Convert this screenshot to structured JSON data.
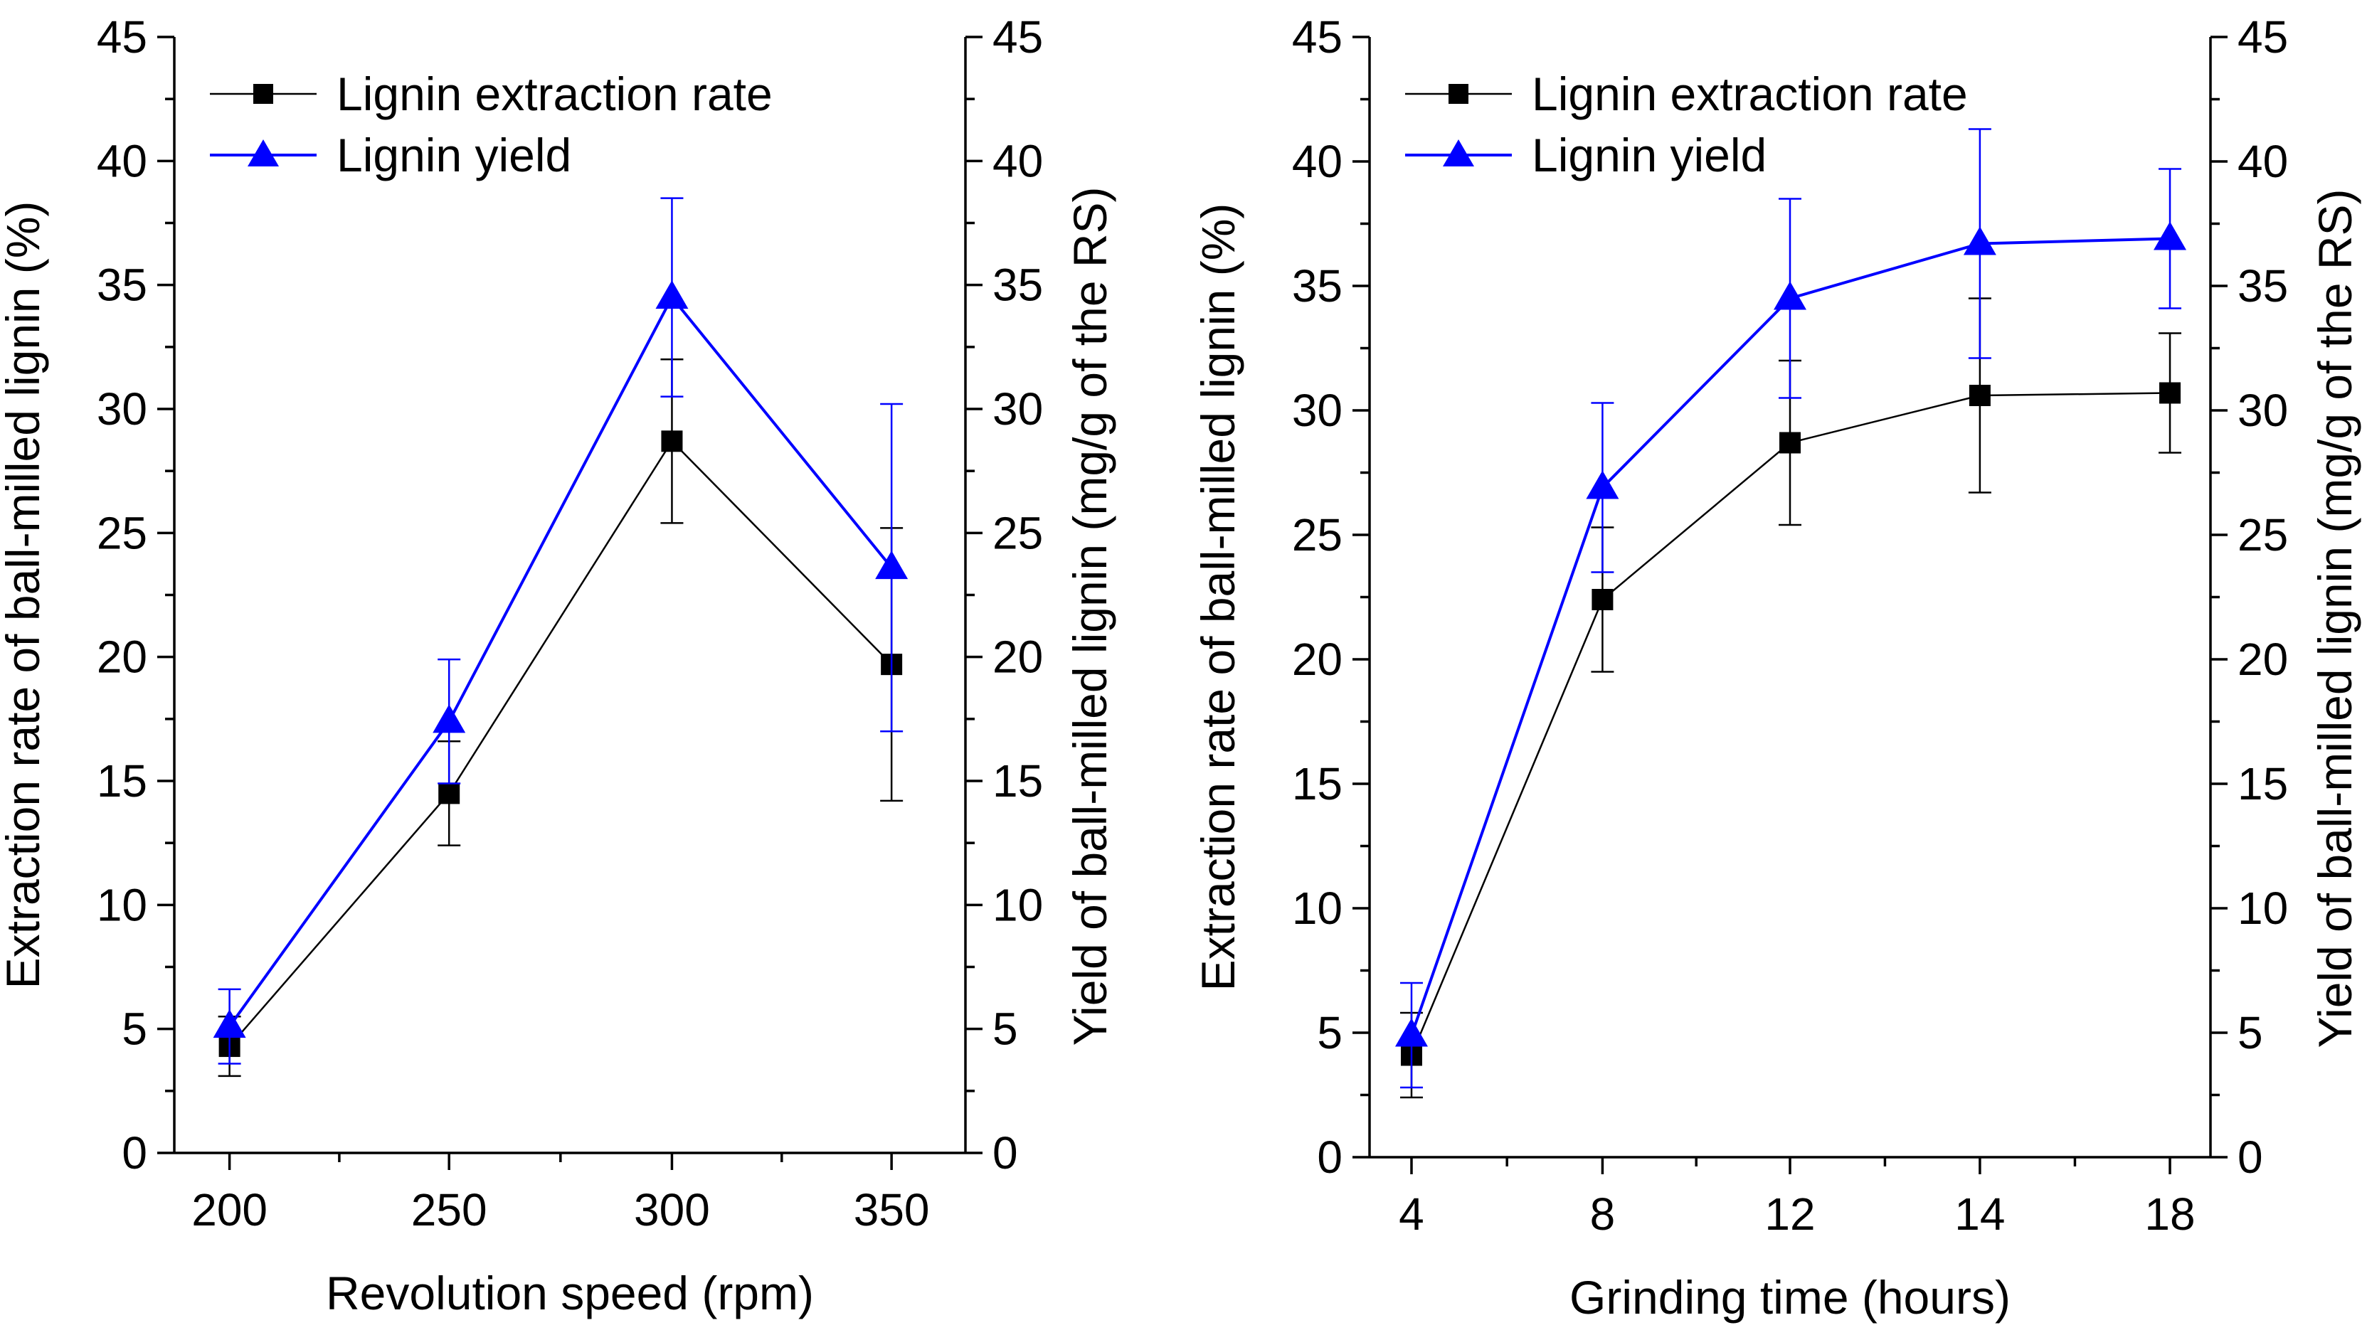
{
  "colors": {
    "series1": "#000000",
    "series2": "#0000ff",
    "axis": "#000000"
  },
  "chart_data": [
    {
      "type": "line",
      "xlabel": "Revolution speed (rpm)",
      "ylabel": "Extraction rate of ball-milled lignin (%)",
      "ylabel_right": "Yield of ball-milled lignin (mg/g of the RS)",
      "categories": [
        "200",
        "250",
        "300",
        "350"
      ],
      "ylim": [
        0,
        45
      ],
      "yticks": [
        "0",
        "5",
        "10",
        "15",
        "20",
        "25",
        "30",
        "35",
        "40",
        "45"
      ],
      "legend_position": "top-left",
      "series": [
        {
          "name": "Lignin extraction rate",
          "marker": "square",
          "color": "#000000",
          "values": [
            4.3,
            14.5,
            28.7,
            19.7
          ],
          "errors": [
            1.2,
            2.1,
            3.3,
            5.5
          ]
        },
        {
          "name": "Lignin yield",
          "marker": "triangle",
          "color": "#0000ff",
          "values": [
            5.1,
            17.4,
            34.5,
            23.6
          ],
          "errors": [
            1.5,
            2.5,
            4.0,
            6.6
          ]
        }
      ]
    },
    {
      "type": "line",
      "xlabel": "Grinding time (hours)",
      "ylabel": "Extraction rate of ball-milled lignin (%)",
      "ylabel_right": "Yield of ball-milled lignin (mg/g of the RS)",
      "categories": [
        "4",
        "8",
        "12",
        "14",
        "18"
      ],
      "ylim": [
        0,
        45
      ],
      "yticks": [
        "0",
        "5",
        "10",
        "15",
        "20",
        "25",
        "30",
        "35",
        "40",
        "45"
      ],
      "legend_position": "top-left",
      "series": [
        {
          "name": "Lignin extraction rate",
          "marker": "square",
          "color": "#000000",
          "values": [
            4.1,
            22.4,
            28.7,
            30.6,
            30.7
          ],
          "errors": [
            1.7,
            2.9,
            3.3,
            3.9,
            2.4
          ]
        },
        {
          "name": "Lignin yield",
          "marker": "triangle",
          "color": "#0000ff",
          "values": [
            4.9,
            26.9,
            34.5,
            36.7,
            36.9
          ],
          "errors": [
            2.1,
            3.4,
            4.0,
            4.6,
            2.8
          ]
        }
      ]
    }
  ]
}
